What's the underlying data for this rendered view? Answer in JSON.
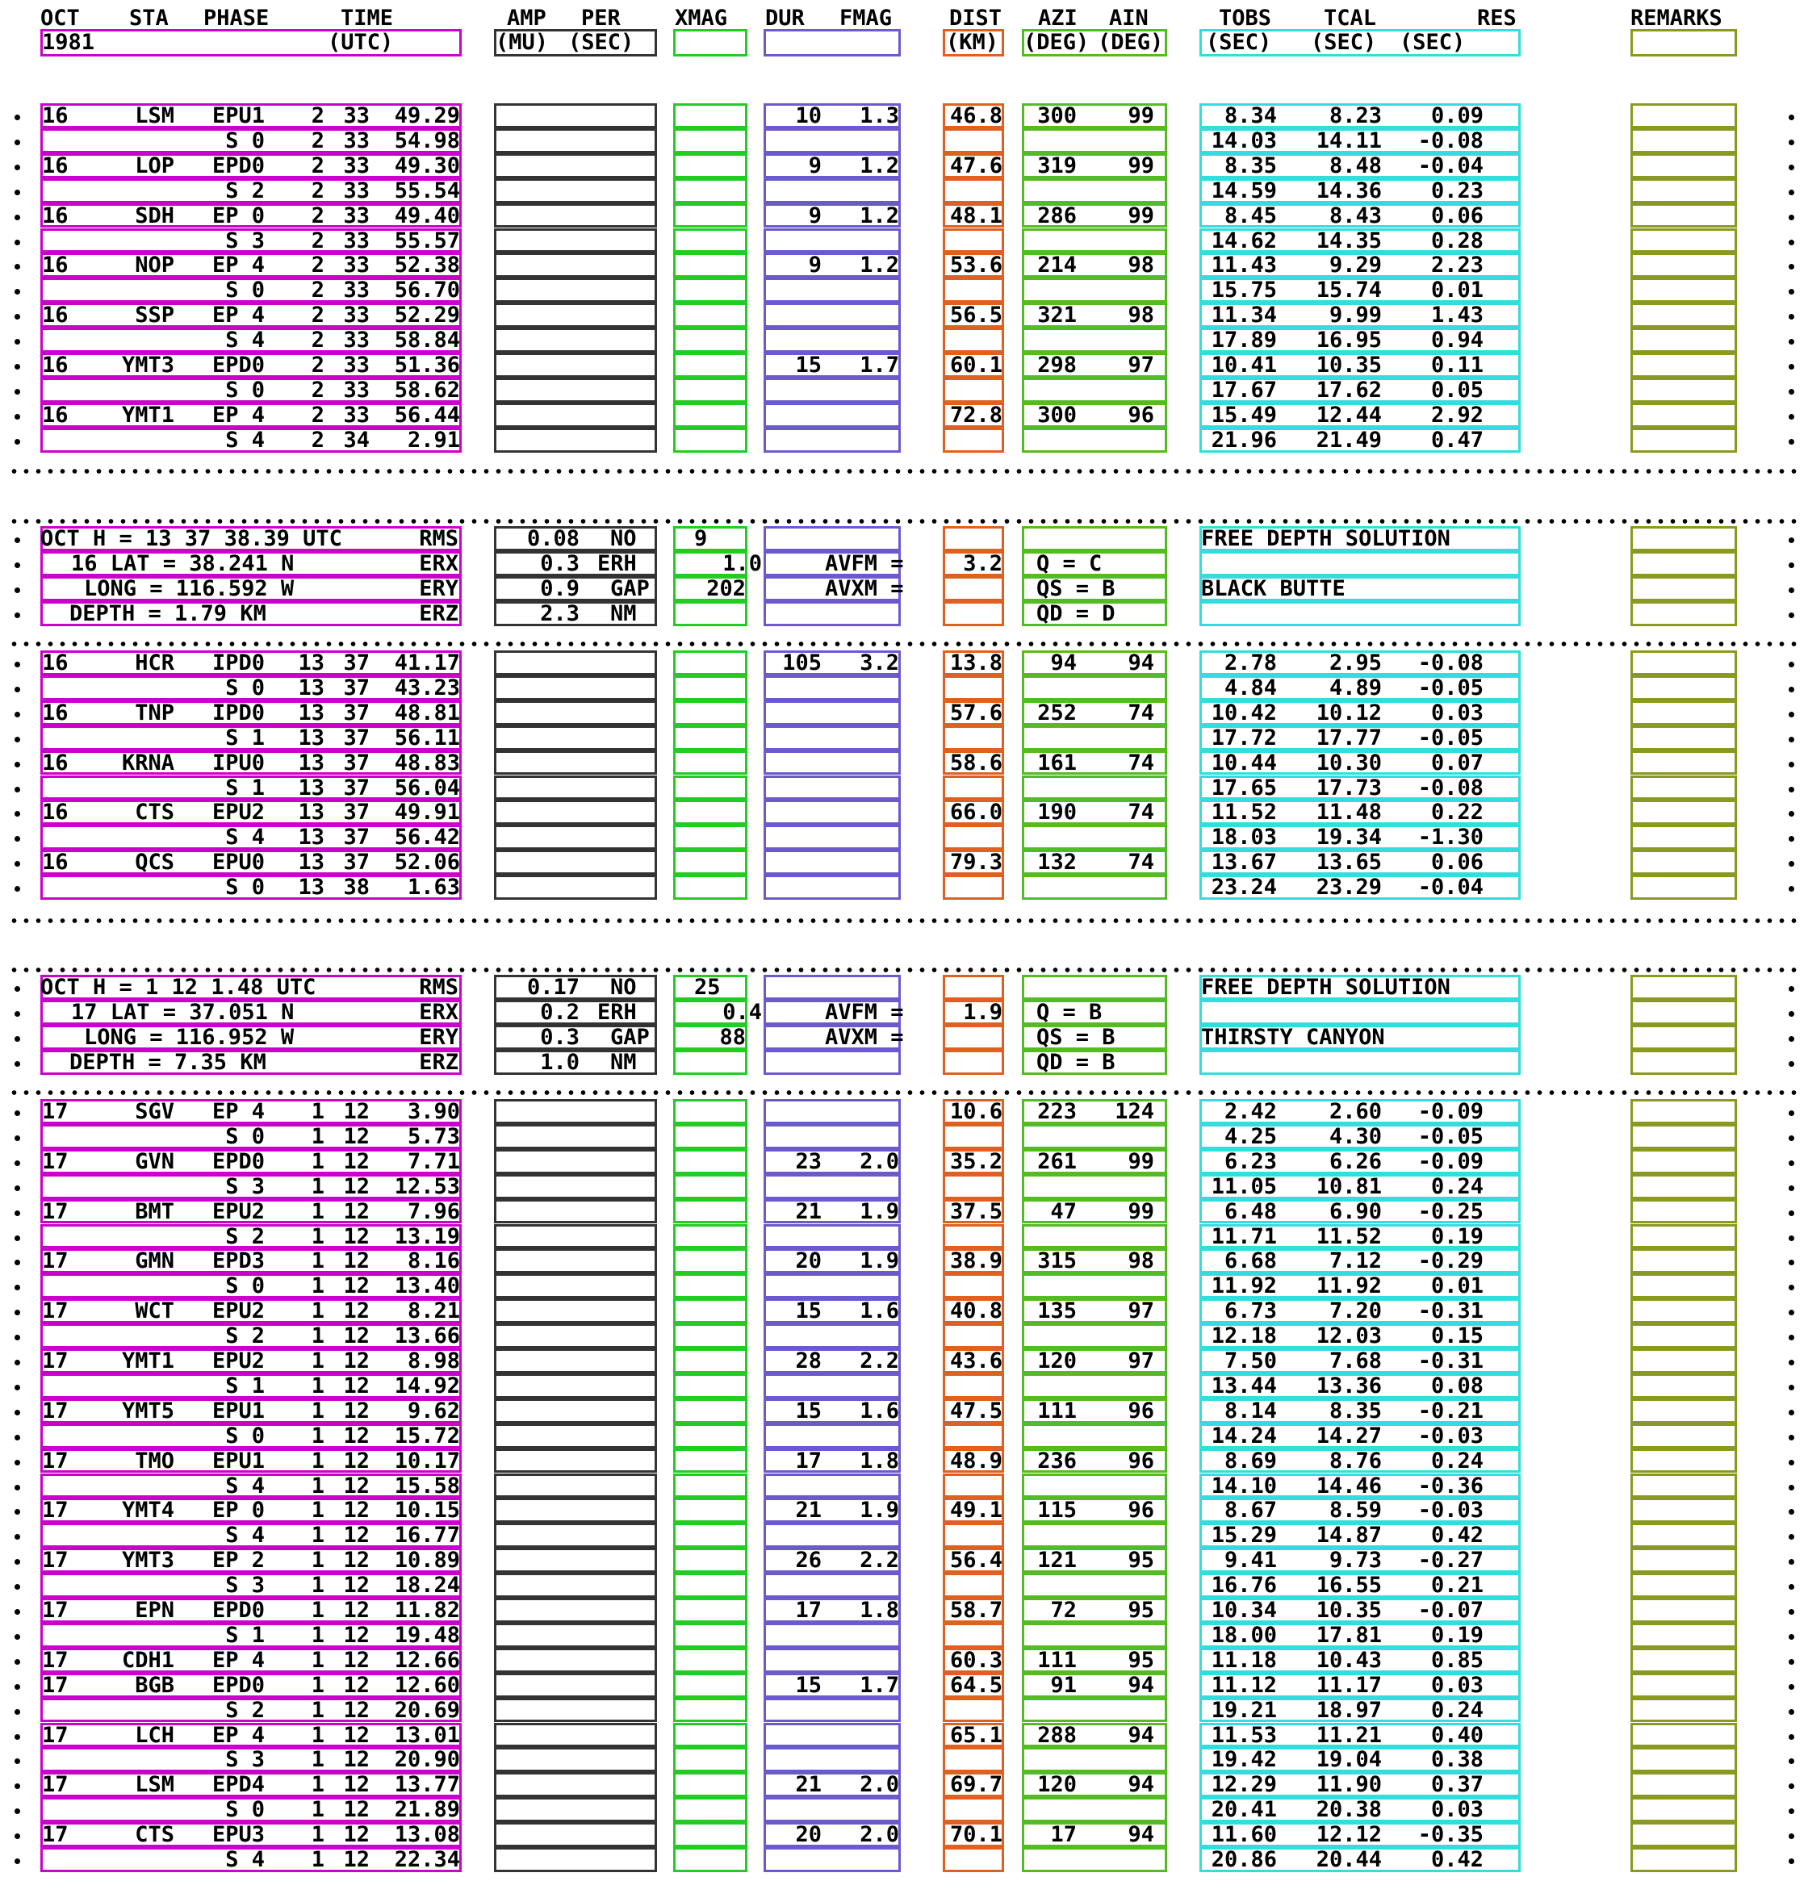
{
  "header": {
    "row1": [
      "OCT",
      "STA",
      "PHASE",
      "TIME",
      "AMP",
      "PER",
      "XMAG",
      "DUR",
      "FMAG",
      "DIST",
      "AZI",
      "AIN",
      "TOBS",
      "TCAL",
      "RES",
      "REMARKS"
    ],
    "row2": [
      "1981",
      "(UTC)",
      "(MU)",
      "(SEC)",
      "(KM)",
      "(DEG)",
      "(DEG)",
      "(SEC)",
      "(SEC)",
      "(SEC)"
    ]
  },
  "events": [
    {
      "rows": [
        {
          "day": "16",
          "sta": "LSM",
          "ph": "EPU1",
          "h": "2",
          "m": "33",
          "s": "49.29",
          "dur": "10",
          "fmag": "1.3",
          "dist": "46.8",
          "azi": "300",
          "ain": "99",
          "tobs": "8.34",
          "tcal": "8.23",
          "res": "0.09"
        },
        {
          "ph": "S 0",
          "h": "2",
          "m": "33",
          "s": "54.98",
          "tobs": "14.03",
          "tcal": "14.11",
          "res": "-0.08"
        },
        {
          "day": "16",
          "sta": "LOP",
          "ph": "EPD0",
          "h": "2",
          "m": "33",
          "s": "49.30",
          "dur": "9",
          "fmag": "1.2",
          "dist": "47.6",
          "azi": "319",
          "ain": "99",
          "tobs": "8.35",
          "tcal": "8.48",
          "res": "-0.04"
        },
        {
          "ph": "S 2",
          "h": "2",
          "m": "33",
          "s": "55.54",
          "tobs": "14.59",
          "tcal": "14.36",
          "res": "0.23"
        },
        {
          "day": "16",
          "sta": "SDH",
          "ph": "EP 0",
          "h": "2",
          "m": "33",
          "s": "49.40",
          "dur": "9",
          "fmag": "1.2",
          "dist": "48.1",
          "azi": "286",
          "ain": "99",
          "tobs": "8.45",
          "tcal": "8.43",
          "res": "0.06"
        },
        {
          "ph": "S 3",
          "h": "2",
          "m": "33",
          "s": "55.57",
          "tobs": "14.62",
          "tcal": "14.35",
          "res": "0.28"
        },
        {
          "day": "16",
          "sta": "NOP",
          "ph": "EP 4",
          "h": "2",
          "m": "33",
          "s": "52.38",
          "dur": "9",
          "fmag": "1.2",
          "dist": "53.6",
          "azi": "214",
          "ain": "98",
          "tobs": "11.43",
          "tcal": "9.29",
          "res": "2.23"
        },
        {
          "ph": "S 0",
          "h": "2",
          "m": "33",
          "s": "56.70",
          "tobs": "15.75",
          "tcal": "15.74",
          "res": "0.01"
        },
        {
          "day": "16",
          "sta": "SSP",
          "ph": "EP 4",
          "h": "2",
          "m": "33",
          "s": "52.29",
          "dist": "56.5",
          "azi": "321",
          "ain": "98",
          "tobs": "11.34",
          "tcal": "9.99",
          "res": "1.43"
        },
        {
          "ph": "S 4",
          "h": "2",
          "m": "33",
          "s": "58.84",
          "tobs": "17.89",
          "tcal": "16.95",
          "res": "0.94"
        },
        {
          "day": "16",
          "sta": "YMT3",
          "ph": "EPD0",
          "h": "2",
          "m": "33",
          "s": "51.36",
          "dur": "15",
          "fmag": "1.7",
          "dist": "60.1",
          "azi": "298",
          "ain": "97",
          "tobs": "10.41",
          "tcal": "10.35",
          "res": "0.11"
        },
        {
          "ph": "S 0",
          "h": "2",
          "m": "33",
          "s": "58.62",
          "tobs": "17.67",
          "tcal": "17.62",
          "res": "0.05"
        },
        {
          "day": "16",
          "sta": "YMT1",
          "ph": "EP 4",
          "h": "2",
          "m": "33",
          "s": "56.44",
          "dist": "72.8",
          "azi": "300",
          "ain": "96",
          "tobs": "15.49",
          "tcal": "12.44",
          "res": "2.92"
        },
        {
          "ph": "S 4",
          "h": "2",
          "m": "34",
          "s": "2.91",
          "tobs": "21.96",
          "tcal": "21.49",
          "res": "0.47"
        }
      ]
    },
    {
      "summary": {
        "l1": "OCT H = 13 37 38.39 UTC",
        "rms_label": "RMS",
        "rms": "0.08",
        "no_label": "NO",
        "no": "9",
        "l2": "16 LAT = 38.241 N",
        "erx_label": "ERX",
        "erx": "0.3",
        "erh_label": "ERH",
        "erh": "1.0",
        "avfm_label": "AVFM =",
        "avfm": "3.2",
        "q": "Q = C",
        "l3": "LONG = 116.592 W",
        "ery_label": "ERY",
        "ery": "0.9",
        "gap_label": "GAP",
        "gap": "202",
        "avxm_label": "AVXM =",
        "qs": "QS = B",
        "l4": "DEPTH = 1.79 KM",
        "erz_label": "ERZ",
        "erz": "2.3",
        "nm_label": "NM",
        "qd": "QD = D",
        "note1": "FREE DEPTH SOLUTION",
        "note2": "BLACK BUTTE"
      },
      "rows": [
        {
          "day": "16",
          "sta": "HCR",
          "ph": "IPD0",
          "h": "13",
          "m": "37",
          "s": "41.17",
          "dur": "105",
          "fmag": "3.2",
          "dist": "13.8",
          "azi": "94",
          "ain": "94",
          "tobs": "2.78",
          "tcal": "2.95",
          "res": "-0.08"
        },
        {
          "ph": "S 0",
          "h": "13",
          "m": "37",
          "s": "43.23",
          "tobs": "4.84",
          "tcal": "4.89",
          "res": "-0.05"
        },
        {
          "day": "16",
          "sta": "TNP",
          "ph": "IPD0",
          "h": "13",
          "m": "37",
          "s": "48.81",
          "dist": "57.6",
          "azi": "252",
          "ain": "74",
          "tobs": "10.42",
          "tcal": "10.12",
          "res": "0.03"
        },
        {
          "ph": "S 1",
          "h": "13",
          "m": "37",
          "s": "56.11",
          "tobs": "17.72",
          "tcal": "17.77",
          "res": "-0.05"
        },
        {
          "day": "16",
          "sta": "KRNA",
          "ph": "IPU0",
          "h": "13",
          "m": "37",
          "s": "48.83",
          "dist": "58.6",
          "azi": "161",
          "ain": "74",
          "tobs": "10.44",
          "tcal": "10.30",
          "res": "0.07"
        },
        {
          "ph": "S 1",
          "h": "13",
          "m": "37",
          "s": "56.04",
          "tobs": "17.65",
          "tcal": "17.73",
          "res": "-0.08"
        },
        {
          "day": "16",
          "sta": "CTS",
          "ph": "EPU2",
          "h": "13",
          "m": "37",
          "s": "49.91",
          "dist": "66.0",
          "azi": "190",
          "ain": "74",
          "tobs": "11.52",
          "tcal": "11.48",
          "res": "0.22"
        },
        {
          "ph": "S 4",
          "h": "13",
          "m": "37",
          "s": "56.42",
          "tobs": "18.03",
          "tcal": "19.34",
          "res": "-1.30"
        },
        {
          "day": "16",
          "sta": "QCS",
          "ph": "EPU0",
          "h": "13",
          "m": "37",
          "s": "52.06",
          "dist": "79.3",
          "azi": "132",
          "ain": "74",
          "tobs": "13.67",
          "tcal": "13.65",
          "res": "0.06"
        },
        {
          "ph": "S 0",
          "h": "13",
          "m": "38",
          "s": "1.63",
          "tobs": "23.24",
          "tcal": "23.29",
          "res": "-0.04"
        }
      ]
    },
    {
      "summary": {
        "l1": "OCT H = 1 12 1.48 UTC",
        "rms_label": "RMS",
        "rms": "0.17",
        "no_label": "NO",
        "no": "25",
        "l2": "17 LAT = 37.051 N",
        "erx_label": "ERX",
        "erx": "0.2",
        "erh_label": "ERH",
        "erh": "0.4",
        "avfm_label": "AVFM =",
        "avfm": "1.9",
        "q": "Q = B",
        "l3": "LONG = 116.952 W",
        "ery_label": "ERY",
        "ery": "0.3",
        "gap_label": "GAP",
        "gap": "88",
        "avxm_label": "AVXM =",
        "qs": "QS = B",
        "l4": "DEPTH = 7.35 KM",
        "erz_label": "ERZ",
        "erz": "1.0",
        "nm_label": "NM",
        "qd": "QD = B",
        "note1": "FREE DEPTH SOLUTION",
        "note2": "THIRSTY CANYON"
      },
      "rows": [
        {
          "day": "17",
          "sta": "SGV",
          "ph": "EP 4",
          "h": "1",
          "m": "12",
          "s": "3.90",
          "dist": "10.6",
          "azi": "223",
          "ain": "124",
          "tobs": "2.42",
          "tcal": "2.60",
          "res": "-0.09"
        },
        {
          "ph": "S 0",
          "h": "1",
          "m": "12",
          "s": "5.73",
          "tobs": "4.25",
          "tcal": "4.30",
          "res": "-0.05"
        },
        {
          "day": "17",
          "sta": "GVN",
          "ph": "EPD0",
          "h": "1",
          "m": "12",
          "s": "7.71",
          "dur": "23",
          "fmag": "2.0",
          "dist": "35.2",
          "azi": "261",
          "ain": "99",
          "tobs": "6.23",
          "tcal": "6.26",
          "res": "-0.09"
        },
        {
          "ph": "S 3",
          "h": "1",
          "m": "12",
          "s": "12.53",
          "tobs": "11.05",
          "tcal": "10.81",
          "res": "0.24"
        },
        {
          "day": "17",
          "sta": "BMT",
          "ph": "EPU2",
          "h": "1",
          "m": "12",
          "s": "7.96",
          "dur": "21",
          "fmag": "1.9",
          "dist": "37.5",
          "azi": "47",
          "ain": "99",
          "tobs": "6.48",
          "tcal": "6.90",
          "res": "-0.25"
        },
        {
          "ph": "S 2",
          "h": "1",
          "m": "12",
          "s": "13.19",
          "tobs": "11.71",
          "tcal": "11.52",
          "res": "0.19"
        },
        {
          "day": "17",
          "sta": "GMN",
          "ph": "EPD3",
          "h": "1",
          "m": "12",
          "s": "8.16",
          "dur": "20",
          "fmag": "1.9",
          "dist": "38.9",
          "azi": "315",
          "ain": "98",
          "tobs": "6.68",
          "tcal": "7.12",
          "res": "-0.29"
        },
        {
          "ph": "S 0",
          "h": "1",
          "m": "12",
          "s": "13.40",
          "tobs": "11.92",
          "tcal": "11.92",
          "res": "0.01"
        },
        {
          "day": "17",
          "sta": "WCT",
          "ph": "EPU2",
          "h": "1",
          "m": "12",
          "s": "8.21",
          "dur": "15",
          "fmag": "1.6",
          "dist": "40.8",
          "azi": "135",
          "ain": "97",
          "tobs": "6.73",
          "tcal": "7.20",
          "res": "-0.31"
        },
        {
          "ph": "S 2",
          "h": "1",
          "m": "12",
          "s": "13.66",
          "tobs": "12.18",
          "tcal": "12.03",
          "res": "0.15"
        },
        {
          "day": "17",
          "sta": "YMT1",
          "ph": "EPU2",
          "h": "1",
          "m": "12",
          "s": "8.98",
          "dur": "28",
          "fmag": "2.2",
          "dist": "43.6",
          "azi": "120",
          "ain": "97",
          "tobs": "7.50",
          "tcal": "7.68",
          "res": "-0.31"
        },
        {
          "ph": "S 1",
          "h": "1",
          "m": "12",
          "s": "14.92",
          "tobs": "13.44",
          "tcal": "13.36",
          "res": "0.08"
        },
        {
          "day": "17",
          "sta": "YMT5",
          "ph": "EPU1",
          "h": "1",
          "m": "12",
          "s": "9.62",
          "dur": "15",
          "fmag": "1.6",
          "dist": "47.5",
          "azi": "111",
          "ain": "96",
          "tobs": "8.14",
          "tcal": "8.35",
          "res": "-0.21"
        },
        {
          "ph": "S 0",
          "h": "1",
          "m": "12",
          "s": "15.72",
          "tobs": "14.24",
          "tcal": "14.27",
          "res": "-0.03"
        },
        {
          "day": "17",
          "sta": "TMO",
          "ph": "EPU1",
          "h": "1",
          "m": "12",
          "s": "10.17",
          "dur": "17",
          "fmag": "1.8",
          "dist": "48.9",
          "azi": "236",
          "ain": "96",
          "tobs": "8.69",
          "tcal": "8.76",
          "res": "0.24"
        },
        {
          "ph": "S 4",
          "h": "1",
          "m": "12",
          "s": "15.58",
          "tobs": "14.10",
          "tcal": "14.46",
          "res": "-0.36"
        },
        {
          "day": "17",
          "sta": "YMT4",
          "ph": "EP 0",
          "h": "1",
          "m": "12",
          "s": "10.15",
          "dur": "21",
          "fmag": "1.9",
          "dist": "49.1",
          "azi": "115",
          "ain": "96",
          "tobs": "8.67",
          "tcal": "8.59",
          "res": "-0.03"
        },
        {
          "ph": "S 4",
          "h": "1",
          "m": "12",
          "s": "16.77",
          "tobs": "15.29",
          "tcal": "14.87",
          "res": "0.42"
        },
        {
          "day": "17",
          "sta": "YMT3",
          "ph": "EP 2",
          "h": "1",
          "m": "12",
          "s": "10.89",
          "dur": "26",
          "fmag": "2.2",
          "dist": "56.4",
          "azi": "121",
          "ain": "95",
          "tobs": "9.41",
          "tcal": "9.73",
          "res": "-0.27"
        },
        {
          "ph": "S 3",
          "h": "1",
          "m": "12",
          "s": "18.24",
          "tobs": "16.76",
          "tcal": "16.55",
          "res": "0.21"
        },
        {
          "day": "17",
          "sta": "EPN",
          "ph": "EPD0",
          "h": "1",
          "m": "12",
          "s": "11.82",
          "dur": "17",
          "fmag": "1.8",
          "dist": "58.7",
          "azi": "72",
          "ain": "95",
          "tobs": "10.34",
          "tcal": "10.35",
          "res": "-0.07"
        },
        {
          "ph": "S 1",
          "h": "1",
          "m": "12",
          "s": "19.48",
          "tobs": "18.00",
          "tcal": "17.81",
          "res": "0.19"
        },
        {
          "day": "17",
          "sta": "CDH1",
          "ph": "EP 4",
          "h": "1",
          "m": "12",
          "s": "12.66",
          "dist": "60.3",
          "azi": "111",
          "ain": "95",
          "tobs": "11.18",
          "tcal": "10.43",
          "res": "0.85"
        },
        {
          "day": "17",
          "sta": "BGB",
          "ph": "EPD0",
          "h": "1",
          "m": "12",
          "s": "12.60",
          "dur": "15",
          "fmag": "1.7",
          "dist": "64.5",
          "azi": "91",
          "ain": "94",
          "tobs": "11.12",
          "tcal": "11.17",
          "res": "0.03"
        },
        {
          "ph": "S 2",
          "h": "1",
          "m": "12",
          "s": "20.69",
          "tobs": "19.21",
          "tcal": "18.97",
          "res": "0.24"
        },
        {
          "day": "17",
          "sta": "LCH",
          "ph": "EP 4",
          "h": "1",
          "m": "12",
          "s": "13.01",
          "dist": "65.1",
          "azi": "288",
          "ain": "94",
          "tobs": "11.53",
          "tcal": "11.21",
          "res": "0.40"
        },
        {
          "ph": "S 3",
          "h": "1",
          "m": "12",
          "s": "20.90",
          "tobs": "19.42",
          "tcal": "19.04",
          "res": "0.38"
        },
        {
          "day": "17",
          "sta": "LSM",
          "ph": "EPD4",
          "h": "1",
          "m": "12",
          "s": "13.77",
          "dur": "21",
          "fmag": "2.0",
          "dist": "69.7",
          "azi": "120",
          "ain": "94",
          "tobs": "12.29",
          "tcal": "11.90",
          "res": "0.37"
        },
        {
          "ph": "S 0",
          "h": "1",
          "m": "12",
          "s": "21.89",
          "tobs": "20.41",
          "tcal": "20.38",
          "res": "0.03"
        },
        {
          "day": "17",
          "sta": "CTS",
          "ph": "EPU3",
          "h": "1",
          "m": "12",
          "s": "13.08",
          "dur": "20",
          "fmag": "2.0",
          "dist": "70.1",
          "azi": "17",
          "ain": "94",
          "tobs": "11.60",
          "tcal": "12.12",
          "res": "-0.35"
        },
        {
          "ph": "S 4",
          "h": "1",
          "m": "12",
          "s": "22.34",
          "tobs": "20.86",
          "tcal": "20.44",
          "res": "0.42"
        }
      ]
    }
  ]
}
